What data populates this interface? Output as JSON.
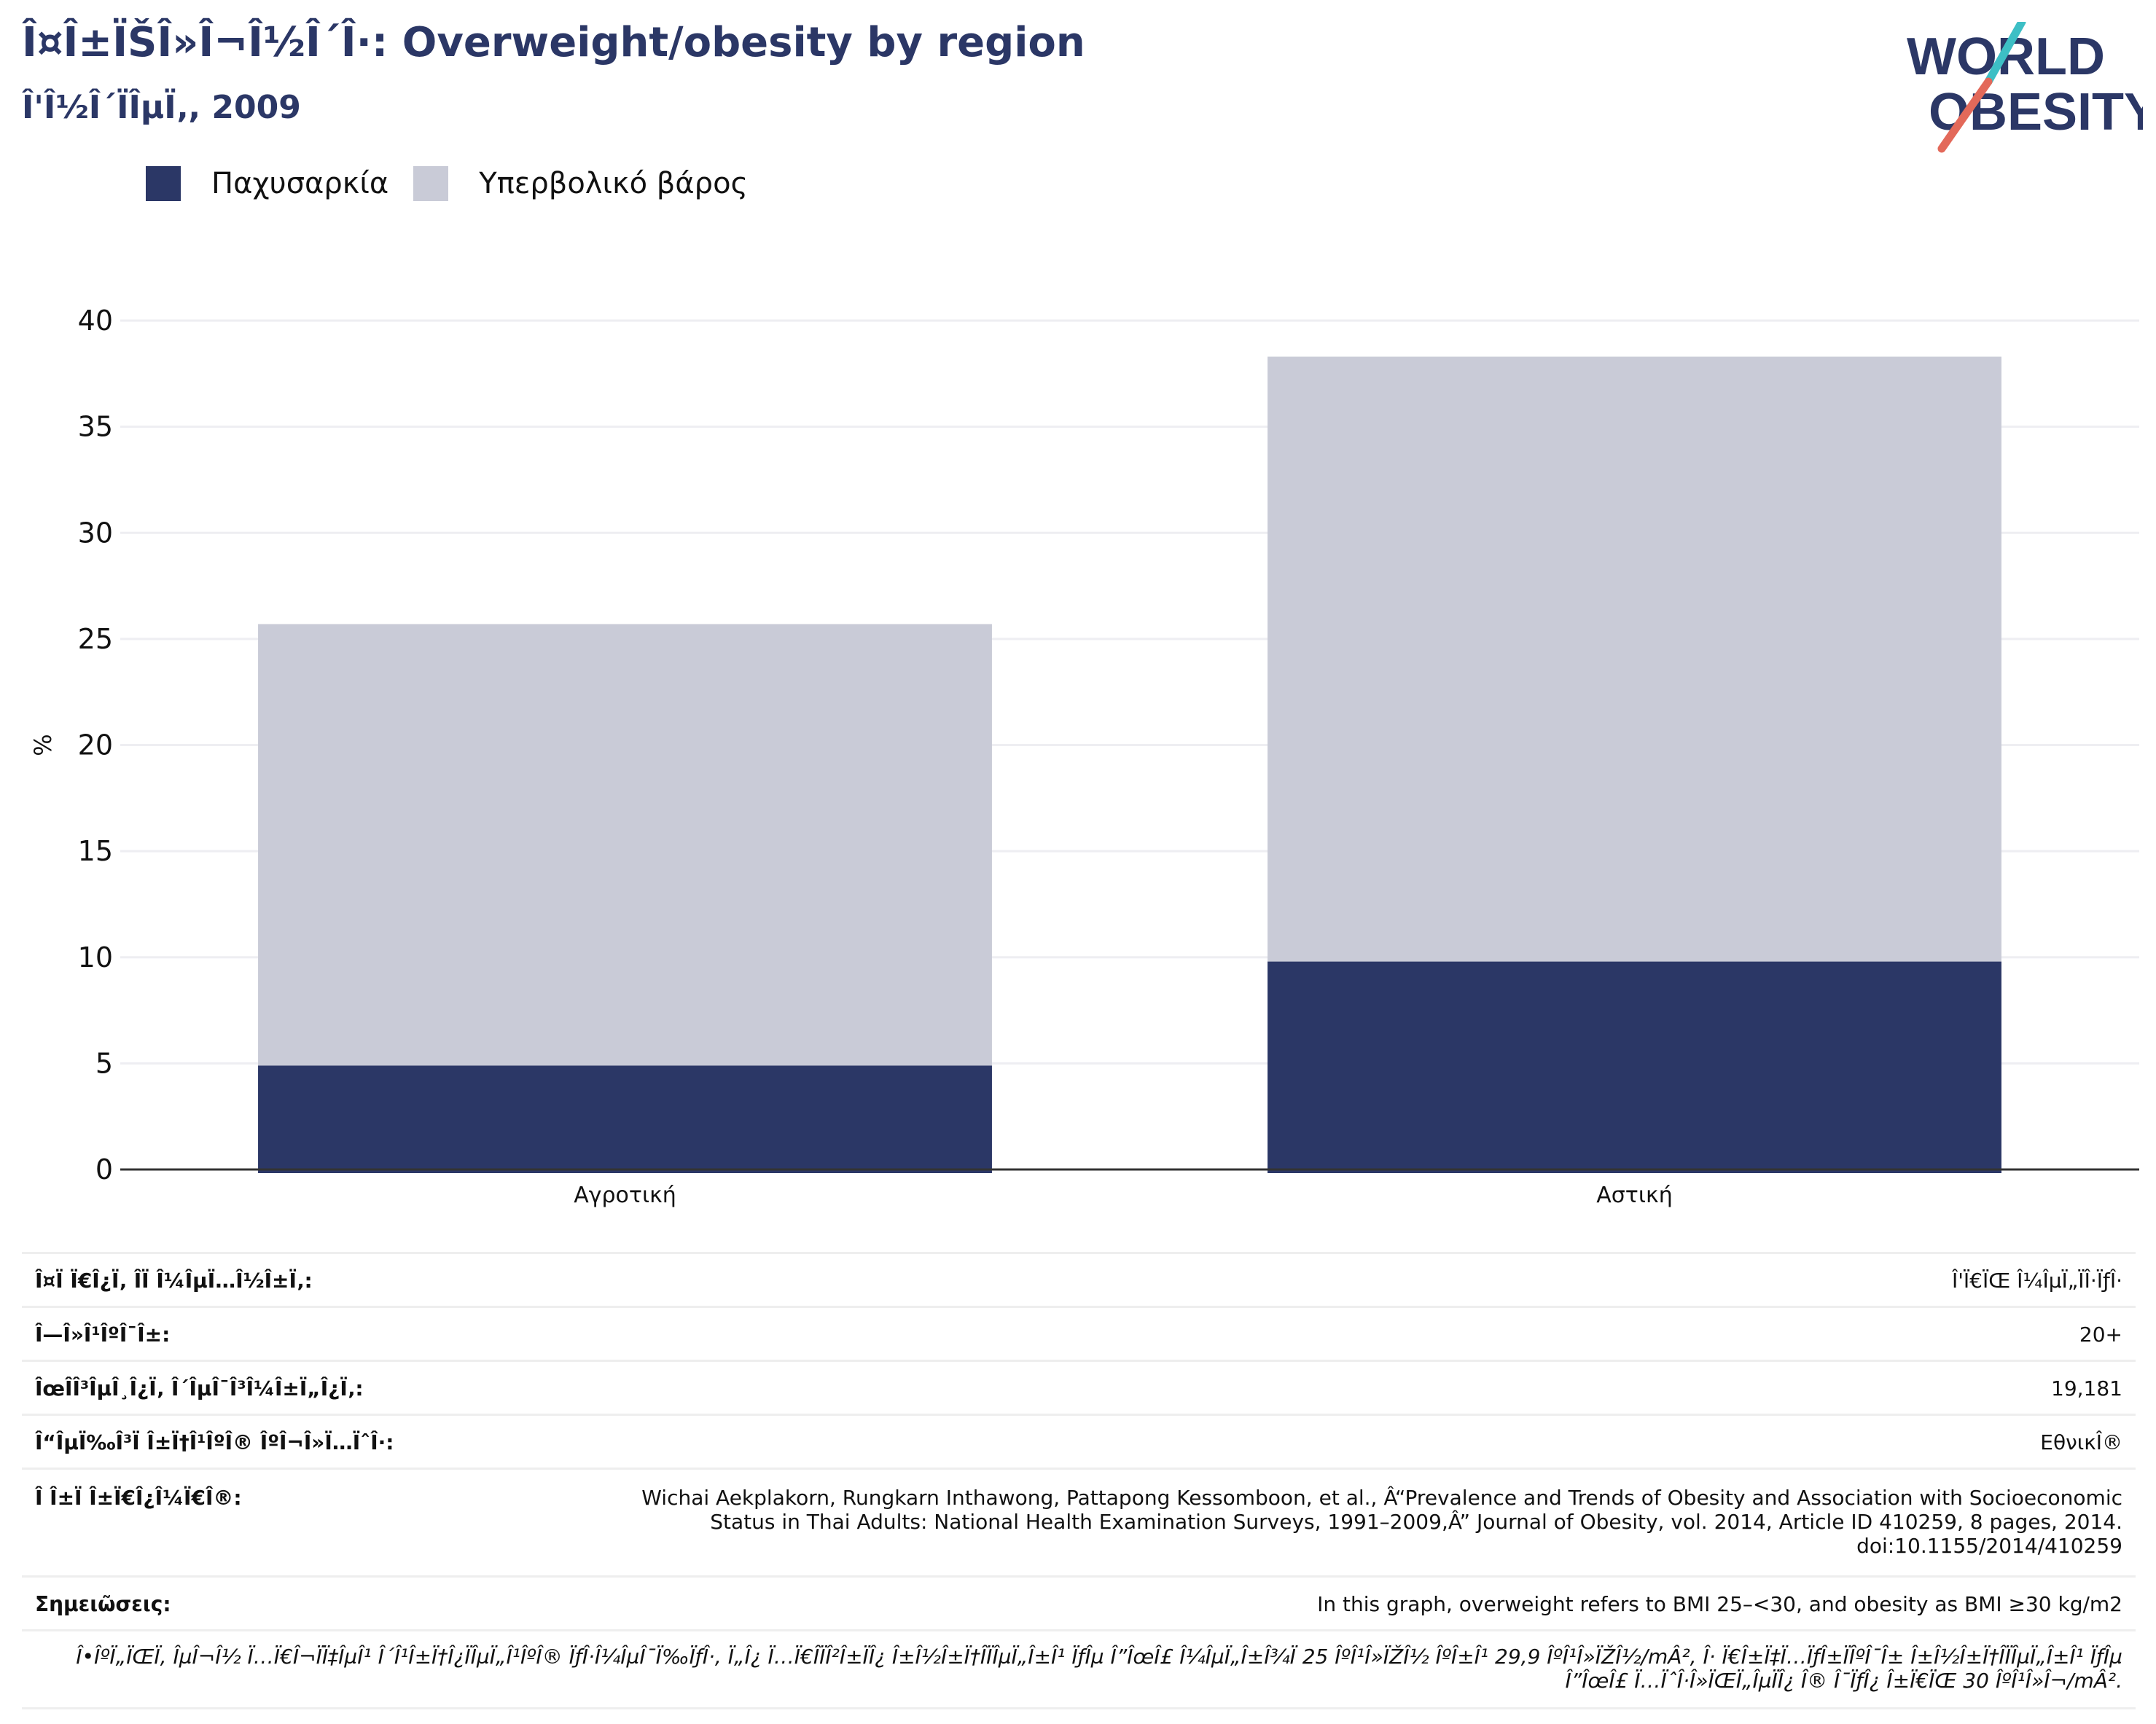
{
  "header": {
    "title": "Î¤Î±ÏŠÎ»Î¬Î½Î´Î·: Overweight/obesity by region",
    "subtitle": "Î'Î½Î´ÏÎµÏ‚, 2009"
  },
  "logo": {
    "line1": "WORLD",
    "line2": "OBESITY",
    "colors": {
      "text": "#2b3766",
      "slash_top": "#3dbfc5",
      "slash_bottom": "#e3695a"
    }
  },
  "colors": {
    "obesity": "#2b3766",
    "overweight": "#c9cbd7",
    "axis": "#333333",
    "grid": "#eeeef2"
  },
  "chart_data": {
    "type": "bar",
    "stacked": true,
    "categories": [
      "Αγροτική",
      "Αστική"
    ],
    "series": [
      {
        "name": "Παχυσαρκία",
        "values": [
          4.9,
          9.8
        ],
        "color": "#2b3766"
      },
      {
        "name": "Υπερβολικό βάρος",
        "values": [
          20.8,
          28.5
        ],
        "color": "#c9cbd7"
      }
    ],
    "ylabel": "%",
    "ylim": [
      0,
      40
    ],
    "yticks": [
      0,
      5,
      10,
      15,
      20,
      25,
      30,
      35,
      40
    ],
    "grid": true,
    "legend": "top-left"
  },
  "meta": {
    "rows": [
      {
        "label": "Î¤Ï Ï€Î¿Ï‚ ÎÏ Î¼ÎµÏ…Î½Î±Ï‚:",
        "value": "Î'Ï€ÏŒ Î¼ÎµÏ„ÏÎ·ÏƒÎ·"
      },
      {
        "label": "Î—Î»Î¹ÎºÎ¯Î±:",
        "value": "20+"
      },
      {
        "label": "ÎœÎ­Î³ÎµÎ¸Î¿Ï‚ Î´ÎµÎ¯Î³Î¼Î±Ï„Î¿Ï‚:",
        "value": "19,181"
      },
      {
        "label": "Î“ÎµÏ‰Î³Ï Î±Ï†Î¹ÎºÎ® ÎºÎ¬Î»Ï…ÏˆÎ·:",
        "value": "ΕθνικÎ®"
      },
      {
        "label": "Î Î±Ï Î±Ï€Î¿Î¼Ï€Î®:",
        "value": "Wichai Aekplakorn, Rungkarn Inthawong, Pattapong Kessomboon, et al., Â“Prevalence and Trends of Obesity and Association with Socioeconomic Status in Thai Adults: National Health Examination Surveys, 1991–2009,Â” Journal of Obesity, vol. 2014, Article ID 410259, 8 pages, 2014. doi:10.1155/2014/410259"
      },
      {
        "label": "Σημειῶσεις:",
        "value": "In this graph, overweight refers to BMI 25–<30, and obesity as BMI ≥30 kg/m2"
      }
    ],
    "note": "Î•ÎºÏ„ÏŒÏ‚ ÎµÎ¬Î½ Ï…Ï€Î¬ÏÏ‡ÎµÎ¹ Î´Î¹Î±Ï†Î¿ÏÎµÏ„Î¹ÎºÎ® ÏƒÎ·Î¼ÎµÎ¯Ï‰ÏƒÎ·, Ï„Î¿ Ï…Ï€Î­ÏÎ²Î±ÏÎ¿ Î±Î½Î±Ï†Î­ÏÎµÏ„Î±Î¹ ÏƒÎµ Î”ÎœÎ£ Î¼ÎµÏ„Î±Î¾Ï 25 ÎºÎ¹Î»ÏŽÎ½ ÎºÎ±Î¹ 29,9 ÎºÎ¹Î»ÏŽÎ½/mÂ², Î· Ï€Î±Ï‡Ï…ÏƒÎ±ÏÎºÎ¯Î± Î±Î½Î±Ï†Î­ÏÎµÏ„Î±Î¹ ÏƒÎµ Î”ÎœÎ£ Ï…ÏˆÎ·Î»ÏŒÏ„ÎµÏÎ¿ Î® Î¯ÏƒÎ¿ Î±Ï€ÏŒ 30 ÎºÎ¹Î»Î¬/mÂ²."
  }
}
